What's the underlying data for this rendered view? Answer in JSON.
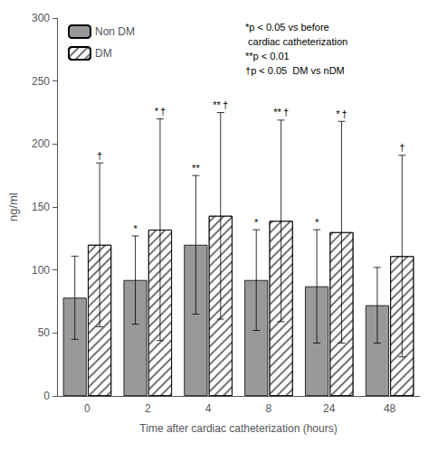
{
  "chart_data": {
    "type": "bar",
    "categories": [
      "0",
      "2",
      "4",
      "8",
      "24",
      "48"
    ],
    "series": [
      {
        "name": "Non DM",
        "color": "#999999",
        "values": [
          78,
          92,
          120,
          92,
          87,
          72
        ],
        "errors": [
          33,
          35,
          55,
          40,
          45,
          30
        ],
        "annotations": [
          null,
          "*",
          "**",
          "*",
          "*",
          null
        ]
      },
      {
        "name": "DM",
        "color": "#ffffff",
        "values": [
          120,
          132,
          143,
          139,
          130,
          111
        ],
        "errors": [
          65,
          88,
          82,
          80,
          88,
          80
        ],
        "annotations": [
          "†",
          "* †",
          "** †",
          "** †",
          "* †",
          "†"
        ]
      }
    ],
    "xlabel": "Time after cardiac catheterization (hours)",
    "ylabel": "ng/ml",
    "ylim": [
      0,
      300
    ],
    "yticks": [
      0,
      50,
      100,
      150,
      200,
      250,
      300
    ],
    "grid": false,
    "legend": "upper left",
    "annotation": "*p < 0.05 vs before\n cardiac catheterization\n**p < 0.01\n†p < 0.05  DM vs nDM"
  }
}
